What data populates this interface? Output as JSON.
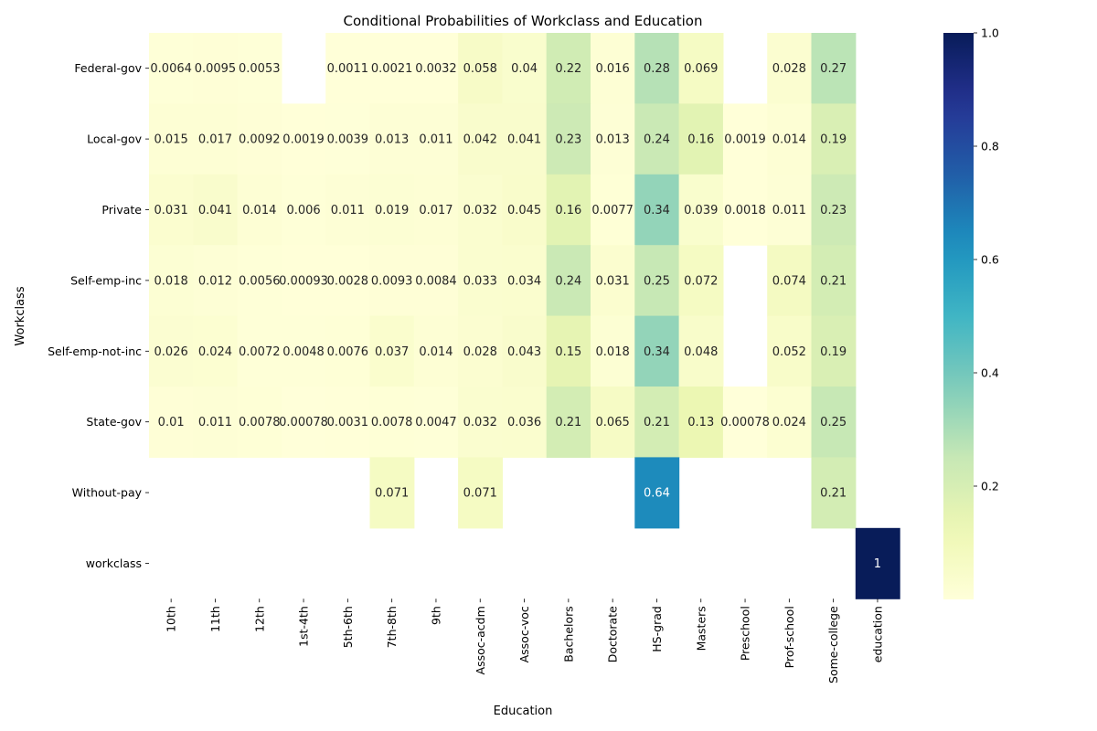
{
  "chart_data": {
    "type": "heatmap",
    "title": "Conditional Probabilities of Workclass and Education",
    "xlabel": "Education",
    "ylabel": "Workclass",
    "x_categories": [
      "10th",
      "11th",
      "12th",
      "1st-4th",
      "5th-6th",
      "7th-8th",
      "9th",
      "Assoc-acdm",
      "Assoc-voc",
      "Bachelors",
      "Doctorate",
      "HS-grad",
      "Masters",
      "Preschool",
      "Prof-school",
      "Some-college",
      "education"
    ],
    "y_categories": [
      " Federal-gov",
      " Local-gov",
      " Private",
      " Self-emp-inc",
      " Self-emp-not-inc",
      " State-gov",
      " Without-pay",
      "workclass"
    ],
    "values": [
      [
        0.0064,
        0.0095,
        0.0053,
        null,
        0.0011,
        0.0021,
        0.0032,
        0.058,
        0.04,
        0.22,
        0.016,
        0.28,
        0.069,
        null,
        0.028,
        0.27,
        null
      ],
      [
        0.015,
        0.017,
        0.0092,
        0.0019,
        0.0039,
        0.013,
        0.011,
        0.042,
        0.041,
        0.23,
        0.013,
        0.24,
        0.16,
        0.0019,
        0.014,
        0.19,
        null
      ],
      [
        0.031,
        0.041,
        0.014,
        0.006,
        0.011,
        0.019,
        0.017,
        0.032,
        0.045,
        0.16,
        0.0077,
        0.34,
        0.039,
        0.0018,
        0.011,
        0.23,
        null
      ],
      [
        0.018,
        0.012,
        0.0056,
        0.00093,
        0.0028,
        0.0093,
        0.0084,
        0.033,
        0.034,
        0.24,
        0.031,
        0.25,
        0.072,
        null,
        0.074,
        0.21,
        null
      ],
      [
        0.026,
        0.024,
        0.0072,
        0.0048,
        0.0076,
        0.037,
        0.014,
        0.028,
        0.043,
        0.15,
        0.018,
        0.34,
        0.048,
        null,
        0.052,
        0.19,
        null
      ],
      [
        0.01,
        0.011,
        0.0078,
        0.00078,
        0.0031,
        0.0078,
        0.0047,
        0.032,
        0.036,
        0.21,
        0.065,
        0.21,
        0.13,
        0.00078,
        0.024,
        0.25,
        null
      ],
      [
        null,
        null,
        null,
        null,
        null,
        0.071,
        null,
        0.071,
        null,
        null,
        null,
        0.64,
        null,
        null,
        null,
        0.21,
        null
      ],
      [
        null,
        null,
        null,
        null,
        null,
        null,
        null,
        null,
        null,
        null,
        null,
        null,
        null,
        null,
        null,
        null,
        1
      ]
    ],
    "colorbar": {
      "colormap": "YlGnBu",
      "range": [
        0,
        1
      ],
      "ticks": [
        "0.2",
        "0.4",
        "0.6",
        "0.8",
        "1.0"
      ]
    },
    "grid": false
  }
}
